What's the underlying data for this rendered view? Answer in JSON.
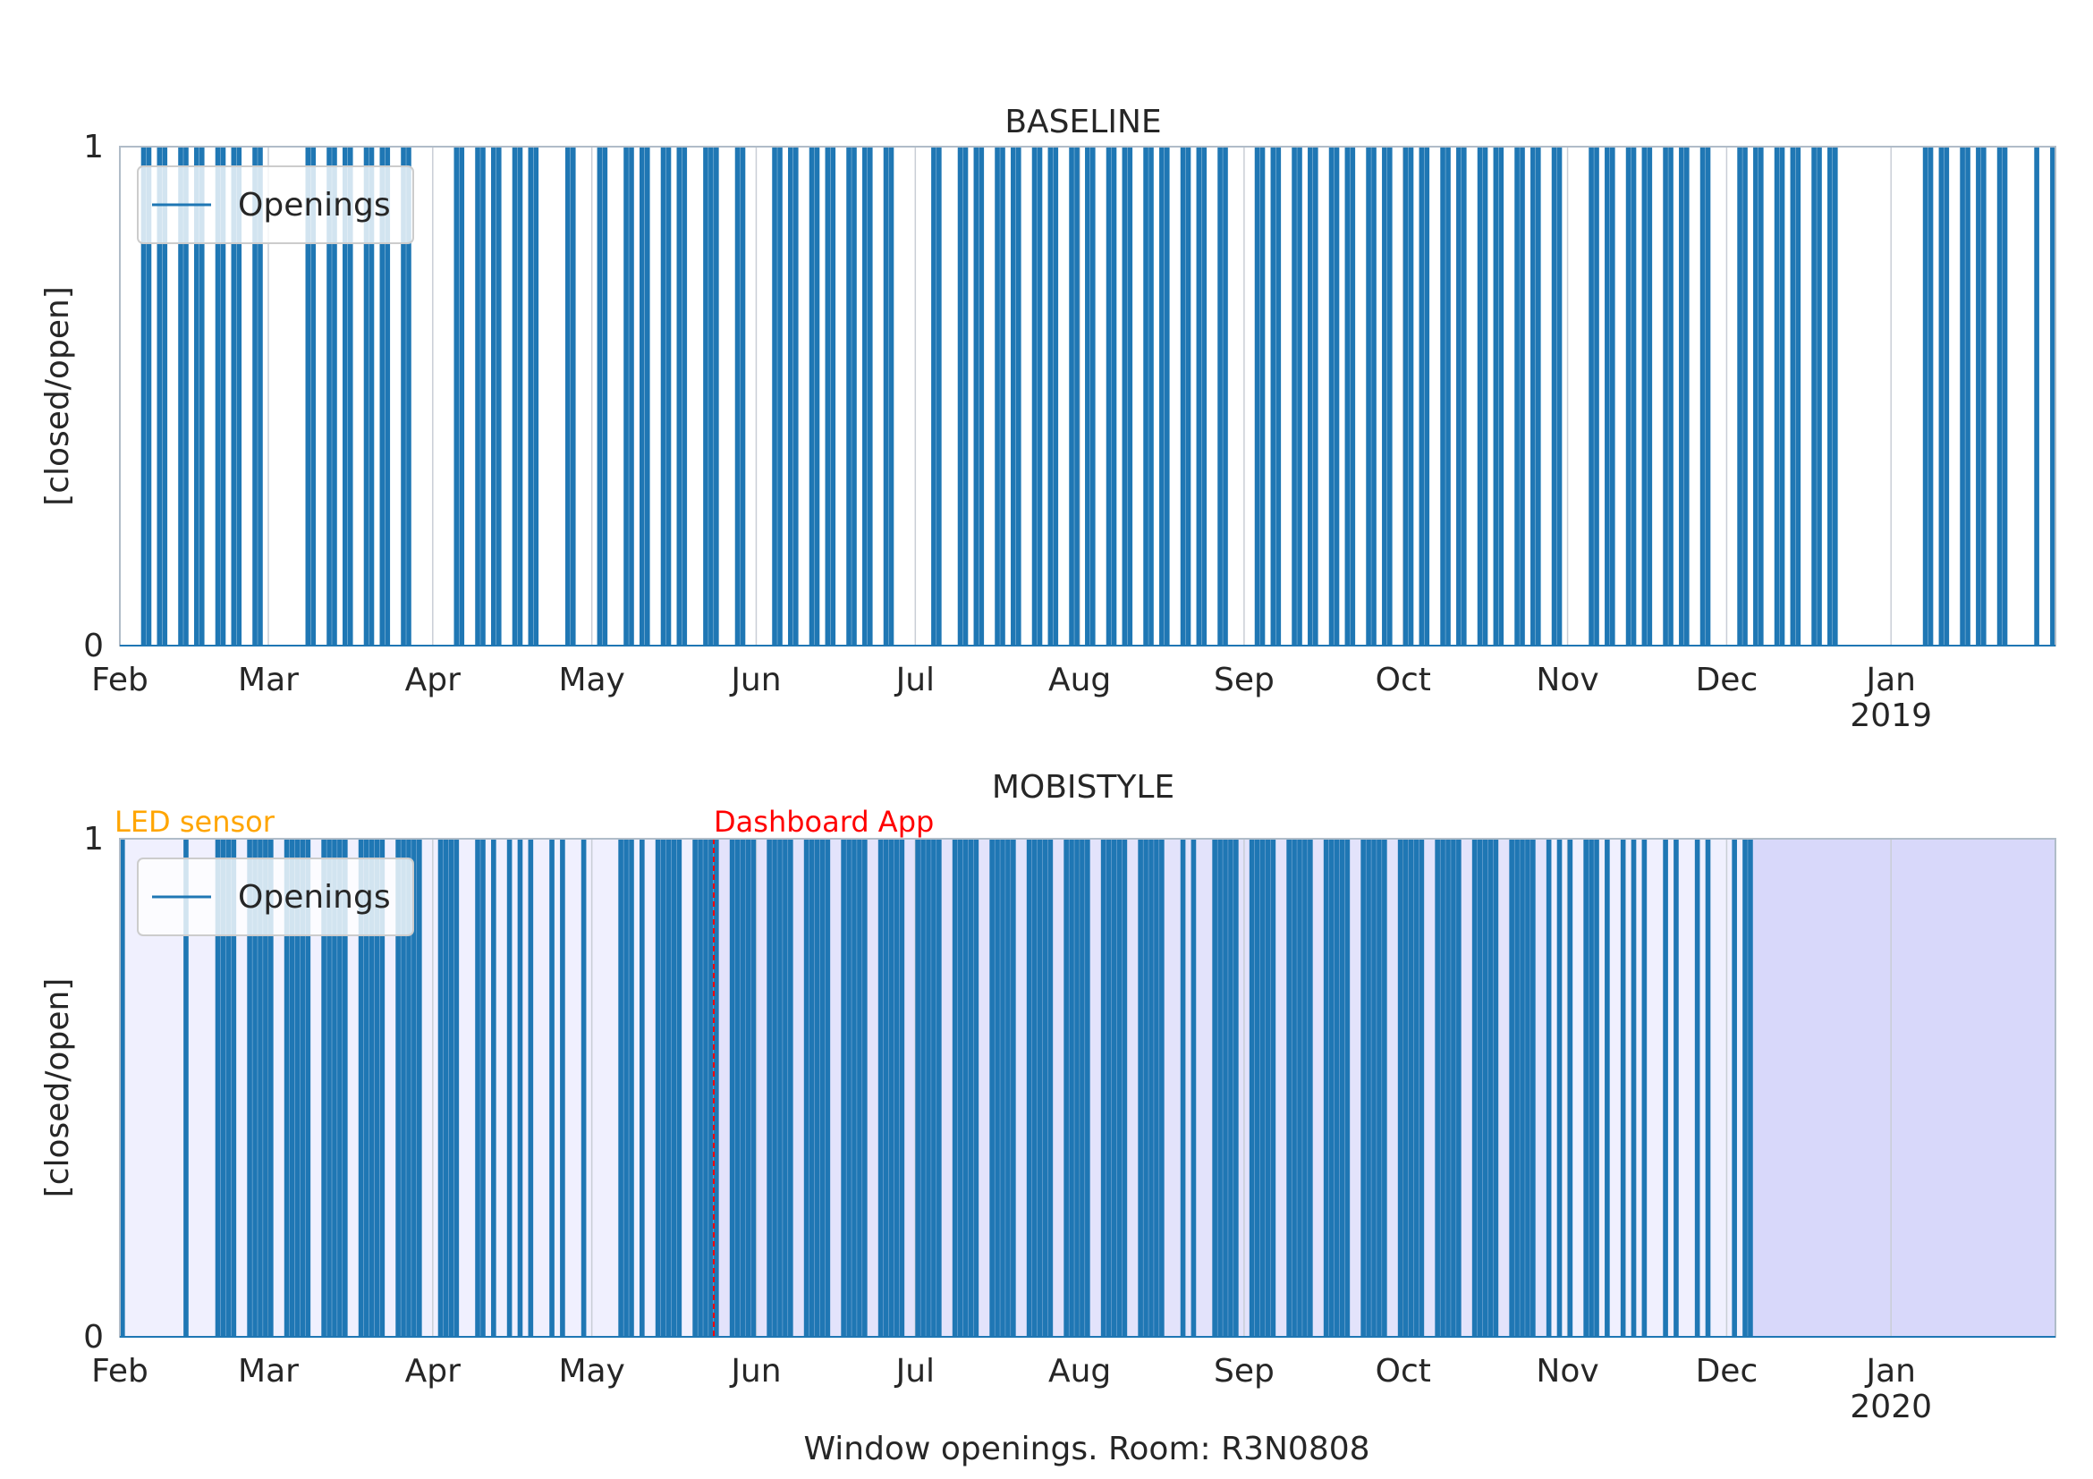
{
  "figure": {
    "caption": "Window openings. Room: R3N0808"
  },
  "colors": {
    "bar": "#1f77b4",
    "spine": "#b0bcc8",
    "annotation_led": "#ffa500",
    "annotation_app": "#ff0000",
    "shade_light": "#f0f0fe",
    "shade_mid": "#e3e3fb",
    "shade_dark": "#d8d8fa",
    "text": "#262626"
  },
  "chart_data": [
    {
      "type": "bar",
      "title": "BASELINE",
      "ylabel": "[closed/open]",
      "xlabel": "",
      "xlim": [
        "2018-02-01",
        "2019-02-01"
      ],
      "ylim": [
        0,
        1
      ],
      "yticks": [
        "0",
        "1"
      ],
      "xticks": [
        {
          "date": "2018-02-01",
          "label": "Feb",
          "sub": ""
        },
        {
          "date": "2018-03-01",
          "label": "Mar",
          "sub": ""
        },
        {
          "date": "2018-04-01",
          "label": "Apr",
          "sub": ""
        },
        {
          "date": "2018-05-01",
          "label": "May",
          "sub": ""
        },
        {
          "date": "2018-06-01",
          "label": "Jun",
          "sub": ""
        },
        {
          "date": "2018-07-01",
          "label": "Jul",
          "sub": ""
        },
        {
          "date": "2018-08-01",
          "label": "Aug",
          "sub": ""
        },
        {
          "date": "2018-09-01",
          "label": "Sep",
          "sub": ""
        },
        {
          "date": "2018-10-01",
          "label": "Oct",
          "sub": ""
        },
        {
          "date": "2018-11-01",
          "label": "Nov",
          "sub": ""
        },
        {
          "date": "2018-12-01",
          "label": "Dec",
          "sub": ""
        },
        {
          "date": "2019-01-01",
          "label": "Jan",
          "sub": "2019"
        }
      ],
      "legend": {
        "label": "Openings",
        "position": "upper-left"
      },
      "grid": "x-major",
      "series": [
        {
          "name": "Openings",
          "value_when_open": 1
        }
      ],
      "open_days": [
        "2018-02-05",
        "2018-02-06",
        "2018-02-08",
        "2018-02-09",
        "2018-02-12",
        "2018-02-13",
        "2018-02-15",
        "2018-02-16",
        "2018-02-19",
        "2018-02-20",
        "2018-02-22",
        "2018-02-23",
        "2018-02-26",
        "2018-02-27",
        "2018-03-08",
        "2018-03-09",
        "2018-03-12",
        "2018-03-13",
        "2018-03-15",
        "2018-03-16",
        "2018-03-19",
        "2018-03-20",
        "2018-03-22",
        "2018-03-23",
        "2018-03-26",
        "2018-03-27",
        "2018-04-05",
        "2018-04-06",
        "2018-04-09",
        "2018-04-10",
        "2018-04-12",
        "2018-04-13",
        "2018-04-16",
        "2018-04-17",
        "2018-04-19",
        "2018-04-20",
        "2018-04-26",
        "2018-04-27",
        "2018-05-02",
        "2018-05-03",
        "2018-05-07",
        "2018-05-08",
        "2018-05-10",
        "2018-05-11",
        "2018-05-14",
        "2018-05-15",
        "2018-05-17",
        "2018-05-18",
        "2018-05-22",
        "2018-05-23",
        "2018-05-24",
        "2018-05-28",
        "2018-05-29",
        "2018-06-04",
        "2018-06-05",
        "2018-06-07",
        "2018-06-08",
        "2018-06-11",
        "2018-06-12",
        "2018-06-14",
        "2018-06-15",
        "2018-06-18",
        "2018-06-19",
        "2018-06-21",
        "2018-06-22",
        "2018-06-25",
        "2018-06-26",
        "2018-07-04",
        "2018-07-05",
        "2018-07-09",
        "2018-07-10",
        "2018-07-12",
        "2018-07-13",
        "2018-07-16",
        "2018-07-17",
        "2018-07-19",
        "2018-07-20",
        "2018-07-23",
        "2018-07-24",
        "2018-07-26",
        "2018-07-27",
        "2018-07-30",
        "2018-07-31",
        "2018-08-02",
        "2018-08-03",
        "2018-08-06",
        "2018-08-07",
        "2018-08-09",
        "2018-08-10",
        "2018-08-13",
        "2018-08-14",
        "2018-08-16",
        "2018-08-17",
        "2018-08-20",
        "2018-08-21",
        "2018-08-23",
        "2018-08-24",
        "2018-08-27",
        "2018-08-28",
        "2018-09-03",
        "2018-09-04",
        "2018-09-06",
        "2018-09-07",
        "2018-09-10",
        "2018-09-11",
        "2018-09-13",
        "2018-09-14",
        "2018-09-17",
        "2018-09-18",
        "2018-09-20",
        "2018-09-21",
        "2018-09-24",
        "2018-09-25",
        "2018-09-27",
        "2018-09-28",
        "2018-10-01",
        "2018-10-02",
        "2018-10-04",
        "2018-10-05",
        "2018-10-08",
        "2018-10-09",
        "2018-10-11",
        "2018-10-12",
        "2018-10-15",
        "2018-10-16",
        "2018-10-18",
        "2018-10-19",
        "2018-10-22",
        "2018-10-23",
        "2018-10-25",
        "2018-10-26",
        "2018-10-29",
        "2018-10-30",
        "2018-11-05",
        "2018-11-06",
        "2018-11-08",
        "2018-11-09",
        "2018-11-12",
        "2018-11-13",
        "2018-11-15",
        "2018-11-16",
        "2018-11-19",
        "2018-11-20",
        "2018-11-22",
        "2018-11-23",
        "2018-11-26",
        "2018-11-27",
        "2018-12-03",
        "2018-12-04",
        "2018-12-06",
        "2018-12-07",
        "2018-12-10",
        "2018-12-11",
        "2018-12-13",
        "2018-12-14",
        "2018-12-17",
        "2018-12-18",
        "2018-12-20",
        "2018-12-21",
        "2019-01-07",
        "2019-01-08",
        "2019-01-10",
        "2019-01-11",
        "2019-01-14",
        "2019-01-15",
        "2019-01-17",
        "2019-01-18",
        "2019-01-21",
        "2019-01-22",
        "2019-01-28",
        "2019-01-31"
      ]
    },
    {
      "type": "bar",
      "title": "MOBISTYLE",
      "ylabel": "[closed/open]",
      "xlabel": "Window openings. Room: R3N0808",
      "xlim": [
        "2019-02-01",
        "2020-02-01"
      ],
      "ylim": [
        0,
        1
      ],
      "yticks": [
        "0",
        "1"
      ],
      "xticks": [
        {
          "date": "2019-02-01",
          "label": "Feb",
          "sub": ""
        },
        {
          "date": "2019-03-01",
          "label": "Mar",
          "sub": ""
        },
        {
          "date": "2019-04-01",
          "label": "Apr",
          "sub": ""
        },
        {
          "date": "2019-05-01",
          "label": "May",
          "sub": ""
        },
        {
          "date": "2019-06-01",
          "label": "Jun",
          "sub": ""
        },
        {
          "date": "2019-07-01",
          "label": "Jul",
          "sub": ""
        },
        {
          "date": "2019-08-01",
          "label": "Aug",
          "sub": ""
        },
        {
          "date": "2019-09-01",
          "label": "Sep",
          "sub": ""
        },
        {
          "date": "2019-10-01",
          "label": "Oct",
          "sub": ""
        },
        {
          "date": "2019-11-01",
          "label": "Nov",
          "sub": ""
        },
        {
          "date": "2019-12-01",
          "label": "Dec",
          "sub": ""
        },
        {
          "date": "2020-01-01",
          "label": "Jan",
          "sub": "2020"
        }
      ],
      "legend": {
        "label": "Openings",
        "position": "upper-left"
      },
      "grid": "x-major",
      "series": [
        {
          "name": "Openings",
          "value_when_open": 1
        }
      ],
      "shaded_periods": [
        {
          "start": "2019-02-01",
          "end": "2019-05-24",
          "color": "shade_light"
        },
        {
          "start": "2019-05-24",
          "end": "2019-10-28",
          "color": "shade_mid"
        },
        {
          "start": "2019-10-28",
          "end": "2019-12-05",
          "color": "shade_light"
        },
        {
          "start": "2019-12-05",
          "end": "2020-02-01",
          "color": "shade_dark"
        }
      ],
      "annotations": [
        {
          "label": "LED sensor",
          "date": "2019-02-01",
          "color": "annotation_led",
          "line": false
        },
        {
          "label": "Dashboard App",
          "date": "2019-05-24",
          "color": "annotation_app",
          "line": true
        }
      ],
      "open_days": [
        "2019-02-01",
        "2019-02-13",
        "2019-02-19",
        "2019-02-20",
        "2019-02-21",
        "2019-02-22",
        "2019-02-25",
        "2019-02-26",
        "2019-02-27",
        "2019-02-28",
        "2019-03-01",
        "2019-03-04",
        "2019-03-05",
        "2019-03-06",
        "2019-03-07",
        "2019-03-08",
        "2019-03-11",
        "2019-03-12",
        "2019-03-13",
        "2019-03-14",
        "2019-03-15",
        "2019-03-18",
        "2019-03-19",
        "2019-03-20",
        "2019-03-21",
        "2019-03-22",
        "2019-03-25",
        "2019-03-26",
        "2019-03-27",
        "2019-03-28",
        "2019-03-29",
        "2019-04-02",
        "2019-04-03",
        "2019-04-04",
        "2019-04-05",
        "2019-04-09",
        "2019-04-10",
        "2019-04-12",
        "2019-04-15",
        "2019-04-17",
        "2019-04-19",
        "2019-04-23",
        "2019-04-25",
        "2019-04-29",
        "2019-05-06",
        "2019-05-07",
        "2019-05-08",
        "2019-05-10",
        "2019-05-13",
        "2019-05-14",
        "2019-05-15",
        "2019-05-16",
        "2019-05-17",
        "2019-05-20",
        "2019-05-21",
        "2019-05-22",
        "2019-05-23",
        "2019-05-24",
        "2019-05-27",
        "2019-05-28",
        "2019-05-29",
        "2019-05-30",
        "2019-05-31",
        "2019-06-03",
        "2019-06-04",
        "2019-06-05",
        "2019-06-06",
        "2019-06-07",
        "2019-06-10",
        "2019-06-11",
        "2019-06-12",
        "2019-06-13",
        "2019-06-14",
        "2019-06-17",
        "2019-06-18",
        "2019-06-19",
        "2019-06-20",
        "2019-06-21",
        "2019-06-24",
        "2019-06-25",
        "2019-06-26",
        "2019-06-27",
        "2019-06-28",
        "2019-07-01",
        "2019-07-02",
        "2019-07-03",
        "2019-07-04",
        "2019-07-05",
        "2019-07-08",
        "2019-07-09",
        "2019-07-10",
        "2019-07-11",
        "2019-07-12",
        "2019-07-15",
        "2019-07-16",
        "2019-07-17",
        "2019-07-18",
        "2019-07-19",
        "2019-07-22",
        "2019-07-23",
        "2019-07-24",
        "2019-07-25",
        "2019-07-26",
        "2019-07-29",
        "2019-07-30",
        "2019-07-31",
        "2019-08-01",
        "2019-08-02",
        "2019-08-05",
        "2019-08-06",
        "2019-08-07",
        "2019-08-08",
        "2019-08-09",
        "2019-08-12",
        "2019-08-13",
        "2019-08-14",
        "2019-08-15",
        "2019-08-16",
        "2019-08-20",
        "2019-08-22",
        "2019-08-26",
        "2019-08-27",
        "2019-08-28",
        "2019-08-29",
        "2019-08-30",
        "2019-09-02",
        "2019-09-03",
        "2019-09-04",
        "2019-09-05",
        "2019-09-06",
        "2019-09-09",
        "2019-09-10",
        "2019-09-11",
        "2019-09-12",
        "2019-09-13",
        "2019-09-16",
        "2019-09-17",
        "2019-09-18",
        "2019-09-19",
        "2019-09-20",
        "2019-09-23",
        "2019-09-24",
        "2019-09-25",
        "2019-09-26",
        "2019-09-27",
        "2019-09-30",
        "2019-10-01",
        "2019-10-02",
        "2019-10-03",
        "2019-10-04",
        "2019-10-07",
        "2019-10-08",
        "2019-10-09",
        "2019-10-10",
        "2019-10-11",
        "2019-10-14",
        "2019-10-15",
        "2019-10-16",
        "2019-10-17",
        "2019-10-18",
        "2019-10-21",
        "2019-10-22",
        "2019-10-23",
        "2019-10-24",
        "2019-10-25",
        "2019-10-28",
        "2019-10-30",
        "2019-11-01",
        "2019-11-04",
        "2019-11-05",
        "2019-11-06",
        "2019-11-08",
        "2019-11-11",
        "2019-11-13",
        "2019-11-15",
        "2019-11-19",
        "2019-11-21",
        "2019-11-25",
        "2019-11-27",
        "2019-12-02",
        "2019-12-04",
        "2019-12-05"
      ]
    }
  ]
}
